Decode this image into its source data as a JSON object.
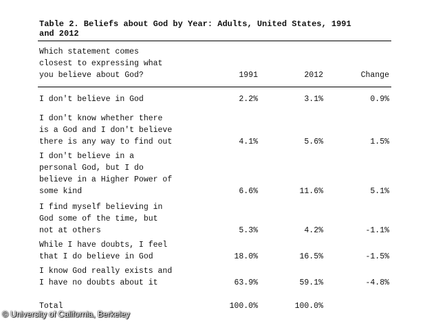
{
  "title": "Table 2. Beliefs about God by Year: Adults, United States, 1991\nand 2012",
  "header": {
    "question": "Which statement comes\nclosest to expressing what\nyou believe about God?",
    "col_1991": "1991",
    "col_2012": "2012",
    "col_change": "Change"
  },
  "rows": [
    {
      "label": "I don't believe in God",
      "v1991": "2.2%",
      "v2012": "3.1%",
      "change": "0.9%"
    },
    {
      "label": "I don't know whether there\nis a God and I don't believe\nthere is any way to find out",
      "v1991": "4.1%",
      "v2012": "5.6%",
      "change": "1.5%"
    },
    {
      "label": "I don't believe in a\npersonal God, but I do\nbelieve in a Higher Power of\nsome kind",
      "v1991": "6.6%",
      "v2012": "11.6%",
      "change": "5.1%"
    },
    {
      "label": "I find myself believing in\nGod some of the time, but\nnot at others",
      "v1991": "5.3%",
      "v2012": "4.2%",
      "change": "-1.1%"
    },
    {
      "label": "While I have doubts, I feel\nthat I do believe in God",
      "v1991": "18.0%",
      "v2012": "16.5%",
      "change": "-1.5%"
    },
    {
      "label": "I know God really exists and\nI have no doubts about it",
      "v1991": "63.9%",
      "v2012": "59.1%",
      "change": "-4.8%"
    }
  ],
  "total": {
    "label": "Total",
    "v1991": "100.0%",
    "v2012": "100.0%"
  },
  "credit": "© University of California, Berkeley"
}
